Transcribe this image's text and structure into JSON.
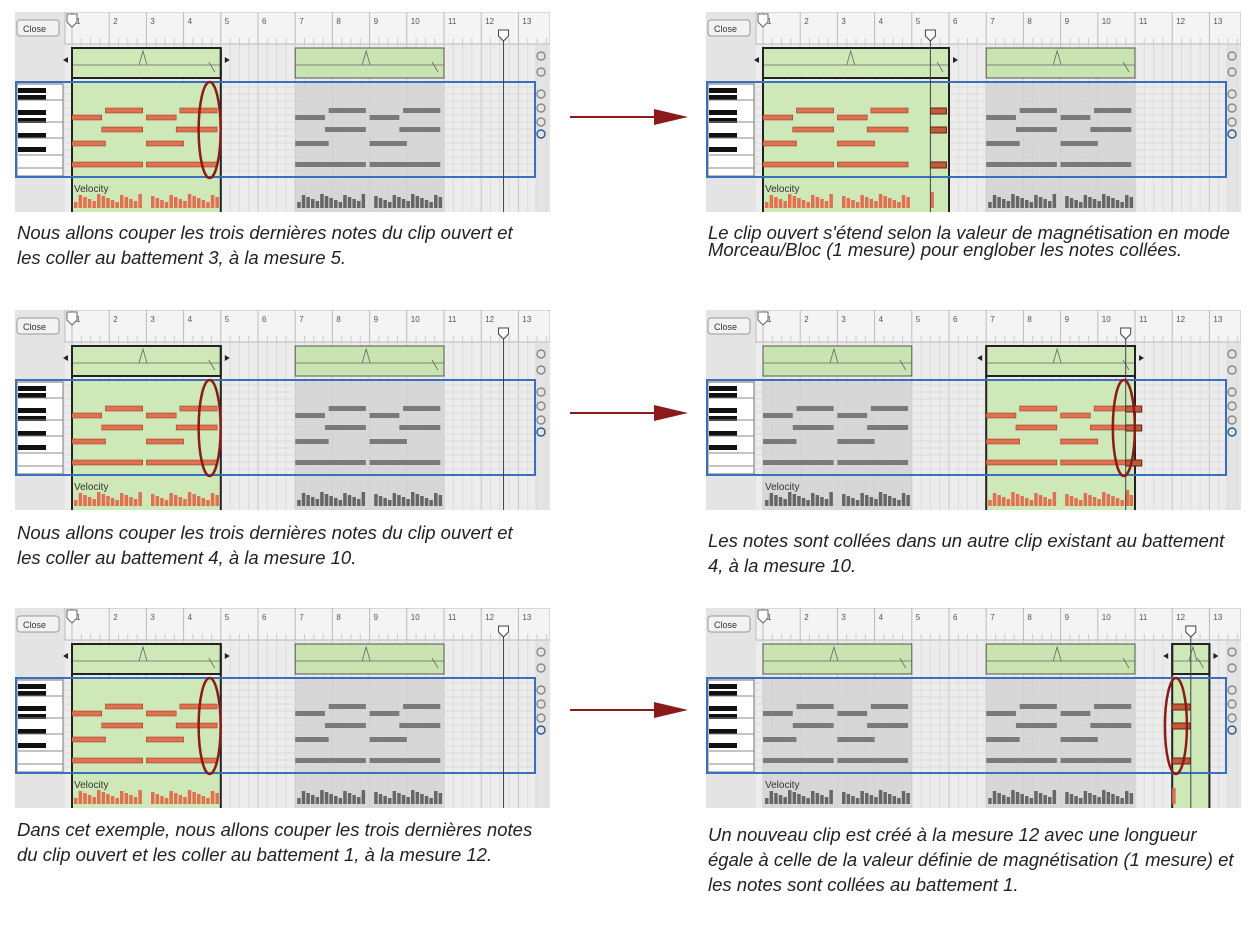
{
  "ui": {
    "close_label": "Close",
    "velocity_label": "Velocity",
    "ruler_measures": [
      "1",
      "2",
      "3",
      "4",
      "5",
      "6",
      "7",
      "8",
      "9",
      "10",
      "11",
      "12",
      "13"
    ]
  },
  "colors": {
    "active_clip": "#cfe8b8",
    "note_active": "#e07050",
    "note_inactive": "#7a7a7a",
    "highlight": "#8b1a1a",
    "selection_border": "#3a6fc0",
    "arrow": "#8b1a1a"
  },
  "note_pattern": [
    {
      "row": 0,
      "start": 0.9,
      "end": 1.9
    },
    {
      "row": 0,
      "start": 2.9,
      "end": 3.9
    },
    {
      "row": 1,
      "start": 0.0,
      "end": 0.8
    },
    {
      "row": 1,
      "start": 2.0,
      "end": 2.8
    },
    {
      "row": 2,
      "start": 0.8,
      "end": 1.9
    },
    {
      "row": 2,
      "start": 2.8,
      "end": 3.9
    },
    {
      "row": 3,
      "start": 0.0,
      "end": 0.9
    },
    {
      "row": 3,
      "start": 2.0,
      "end": 3.0
    },
    {
      "row": 4,
      "start": 0.0,
      "end": 1.9
    },
    {
      "row": 4,
      "start": 2.0,
      "end": 3.9
    }
  ],
  "panels": [
    {
      "id": "1-before",
      "clips": [
        {
          "start": 1,
          "end": 5,
          "active": true,
          "notes": true
        },
        {
          "start": 7,
          "end": 11,
          "active": false,
          "notes": true
        }
      ],
      "ellipse_measure": 4.7,
      "playhead": 12.6,
      "caption": "Nous allons couper les trois dernières notes du clip ouvert et les coller au battement 3, à la mesure 5."
    },
    {
      "id": "1-after",
      "clips": [
        {
          "start": 1,
          "end": 6,
          "active": true,
          "notes": true,
          "pasted": 5.5
        },
        {
          "start": 7,
          "end": 11,
          "active": false,
          "notes": true
        }
      ],
      "ellipse_measure": null,
      "playhead": 5.5,
      "caption": "Le clip ouvert s'étend selon la valeur de magnétisation en mode Morceau/Bloc (1 mesure) pour englober les notes collées."
    },
    {
      "id": "2-before",
      "clips": [
        {
          "start": 1,
          "end": 5,
          "active": true,
          "notes": true
        },
        {
          "start": 7,
          "end": 11,
          "active": false,
          "notes": true
        }
      ],
      "ellipse_measure": 4.7,
      "playhead": 12.6,
      "caption": "Nous allons couper les trois dernières notes du clip ouvert et les coller au battement 4, à la mesure 10."
    },
    {
      "id": "2-after",
      "clips": [
        {
          "start": 1,
          "end": 5,
          "active": false,
          "notes": true
        },
        {
          "start": 7,
          "end": 11,
          "active": true,
          "notes": true,
          "pasted": 10.75
        }
      ],
      "ellipse_measure": 10.7,
      "playhead": 10.75,
      "caption": "Les notes sont collées dans un autre clip existant au battement 4, à la mesure 10."
    },
    {
      "id": "3-before",
      "clips": [
        {
          "start": 1,
          "end": 5,
          "active": true,
          "notes": true
        },
        {
          "start": 7,
          "end": 11,
          "active": false,
          "notes": true
        }
      ],
      "ellipse_measure": 4.7,
      "playhead": 12.6,
      "caption": "Dans cet exemple, nous allons couper les trois dernières notes du clip ouvert et les coller au battement 1, à la mesure 12."
    },
    {
      "id": "3-after",
      "clips": [
        {
          "start": 1,
          "end": 5,
          "active": false,
          "notes": true
        },
        {
          "start": 7,
          "end": 11,
          "active": false,
          "notes": true
        },
        {
          "start": 12,
          "end": 13,
          "active": true,
          "notes": false,
          "pasted": 12
        }
      ],
      "ellipse_measure": 12.1,
      "playhead": 12.5,
      "caption": "Un nouveau clip est créé à la mesure 12 avec une longueur égale à celle de la valeur définie de magnétisation (1 mesure) et les notes sont collées au battement 1."
    }
  ]
}
